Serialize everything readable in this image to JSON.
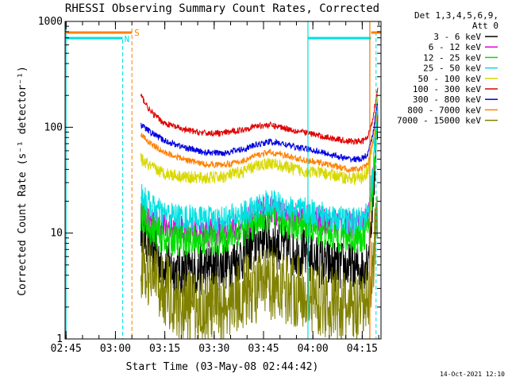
{
  "chart_data": {
    "type": "line",
    "title": "RHESSI Observing Summary Count Rates, Corrected",
    "xlabel": "Start Time (03-May-08 02:44:42)",
    "ylabel": "Corrected Count Rate (s⁻¹ detector⁻¹)",
    "x_unit": "minutes since 02:44:42",
    "xlim": [
      0,
      96
    ],
    "ylim": [
      1,
      1000
    ],
    "y_scale": "log",
    "x_ticks": [
      {
        "t": 0.3,
        "label": "02:45"
      },
      {
        "t": 15.3,
        "label": "03:00"
      },
      {
        "t": 30.3,
        "label": "03:15"
      },
      {
        "t": 45.3,
        "label": "03:30"
      },
      {
        "t": 60.3,
        "label": "03:45"
      },
      {
        "t": 75.3,
        "label": "04:00"
      },
      {
        "t": 90.3,
        "label": "04:15"
      }
    ],
    "y_ticks": [
      {
        "v": 1,
        "label": "1"
      },
      {
        "v": 10,
        "label": "10"
      },
      {
        "v": 100,
        "label": "100"
      },
      {
        "v": 1000,
        "label": "1000"
      }
    ],
    "legend": {
      "header": [
        "Det 1,3,4,5,6,9,",
        "Att 0"
      ],
      "placement": "right"
    },
    "data_start": 23,
    "data_end": 95,
    "series": [
      {
        "name": "3 - 6 keV",
        "color": "#000000",
        "points": [
          [
            23,
            12
          ],
          [
            26,
            7.5
          ],
          [
            30,
            5
          ],
          [
            35,
            4.3
          ],
          [
            40,
            4.4
          ],
          [
            46,
            4.8
          ],
          [
            52,
            5.5
          ],
          [
            56,
            7
          ],
          [
            60,
            9.5
          ],
          [
            64,
            8
          ],
          [
            68,
            7
          ],
          [
            72,
            6.5
          ],
          [
            76,
            5.5
          ],
          [
            80,
            5
          ],
          [
            84,
            4.8
          ],
          [
            88,
            4.6
          ],
          [
            90,
            4.6
          ],
          [
            92,
            6
          ],
          [
            93.5,
            20
          ],
          [
            94.5,
            70
          ],
          [
            95,
            130
          ]
        ],
        "noise": 0.25
      },
      {
        "name": "6 - 12 keV",
        "color": "#e000e0",
        "points": [
          [
            23,
            17
          ],
          [
            26,
            13
          ],
          [
            30,
            11.5
          ],
          [
            36,
            10.5
          ],
          [
            42,
            10
          ],
          [
            48,
            10.5
          ],
          [
            54,
            12
          ],
          [
            58,
            15
          ],
          [
            62,
            17
          ],
          [
            66,
            15.5
          ],
          [
            70,
            14
          ],
          [
            74,
            13.5
          ],
          [
            78,
            13
          ],
          [
            82,
            12.5
          ],
          [
            86,
            12
          ],
          [
            90,
            12
          ],
          [
            92,
            14
          ],
          [
            93.5,
            30
          ],
          [
            94.5,
            90
          ],
          [
            95,
            160
          ]
        ],
        "noise": 0.14
      },
      {
        "name": "12 - 25 keV",
        "color": "#00e000",
        "points": [
          [
            23,
            15
          ],
          [
            26,
            11
          ],
          [
            30,
            9
          ],
          [
            36,
            8.5
          ],
          [
            42,
            8.5
          ],
          [
            48,
            9
          ],
          [
            54,
            10.5
          ],
          [
            58,
            12.5
          ],
          [
            62,
            14.5
          ],
          [
            66,
            13
          ],
          [
            70,
            12
          ],
          [
            74,
            11.5
          ],
          [
            78,
            10.5
          ],
          [
            82,
            9.5
          ],
          [
            86,
            9
          ],
          [
            90,
            9
          ],
          [
            92,
            11
          ],
          [
            93.5,
            25
          ],
          [
            94.5,
            80
          ],
          [
            95,
            150
          ]
        ],
        "noise": 0.16
      },
      {
        "name": "25 - 50 keV",
        "color": "#00e0e0",
        "points": [
          [
            23,
            24
          ],
          [
            26,
            18
          ],
          [
            30,
            15
          ],
          [
            36,
            14
          ],
          [
            42,
            13.5
          ],
          [
            48,
            13.5
          ],
          [
            54,
            15
          ],
          [
            58,
            17
          ],
          [
            62,
            19.5
          ],
          [
            66,
            18
          ],
          [
            70,
            16.5
          ],
          [
            74,
            16
          ],
          [
            78,
            15
          ],
          [
            82,
            14
          ],
          [
            86,
            13
          ],
          [
            90,
            13
          ],
          [
            92,
            16
          ],
          [
            93.5,
            35
          ],
          [
            94.5,
            100
          ],
          [
            95,
            170
          ]
        ],
        "noise": 0.13
      },
      {
        "name": "50 - 100 keV",
        "color": "#d8d800",
        "points": [
          [
            23,
            50
          ],
          [
            26,
            42
          ],
          [
            30,
            37
          ],
          [
            36,
            34
          ],
          [
            42,
            33
          ],
          [
            48,
            34
          ],
          [
            54,
            38
          ],
          [
            58,
            43
          ],
          [
            62,
            46
          ],
          [
            66,
            43
          ],
          [
            70,
            40
          ],
          [
            74,
            38
          ],
          [
            78,
            37
          ],
          [
            82,
            35
          ],
          [
            86,
            33
          ],
          [
            90,
            33
          ],
          [
            92,
            38
          ],
          [
            93.5,
            70
          ],
          [
            94.5,
            150
          ],
          [
            95,
            200
          ]
        ],
        "noise": 0.06
      },
      {
        "name": "100 - 300 keV",
        "color": "#e00000",
        "points": [
          [
            23,
            200
          ],
          [
            26,
            140
          ],
          [
            30,
            110
          ],
          [
            36,
            95
          ],
          [
            42,
            88
          ],
          [
            48,
            88
          ],
          [
            54,
            95
          ],
          [
            58,
            103
          ],
          [
            62,
            105
          ],
          [
            66,
            100
          ],
          [
            70,
            93
          ],
          [
            74,
            88
          ],
          [
            78,
            82
          ],
          [
            82,
            78
          ],
          [
            86,
            74
          ],
          [
            90,
            73
          ],
          [
            92,
            80
          ],
          [
            93.5,
            120
          ],
          [
            94.5,
            190
          ],
          [
            95,
            230
          ]
        ],
        "noise": 0.03
      },
      {
        "name": "300 - 800 keV",
        "color": "#0000e0",
        "points": [
          [
            23,
            105
          ],
          [
            26,
            90
          ],
          [
            30,
            75
          ],
          [
            36,
            65
          ],
          [
            42,
            58
          ],
          [
            48,
            57
          ],
          [
            54,
            62
          ],
          [
            58,
            68
          ],
          [
            62,
            73
          ],
          [
            66,
            70
          ],
          [
            70,
            65
          ],
          [
            74,
            62
          ],
          [
            78,
            58
          ],
          [
            82,
            54
          ],
          [
            86,
            50
          ],
          [
            90,
            50
          ],
          [
            92,
            55
          ],
          [
            93.5,
            85
          ],
          [
            94.5,
            140
          ],
          [
            95,
            170
          ]
        ],
        "noise": 0.03
      },
      {
        "name": "800 - 7000 keV",
        "color": "#ff8000",
        "points": [
          [
            23,
            85
          ],
          [
            26,
            70
          ],
          [
            30,
            58
          ],
          [
            36,
            50
          ],
          [
            42,
            45
          ],
          [
            48,
            44
          ],
          [
            54,
            48
          ],
          [
            58,
            54
          ],
          [
            62,
            58
          ],
          [
            66,
            55
          ],
          [
            70,
            51
          ],
          [
            74,
            48
          ],
          [
            78,
            46
          ],
          [
            82,
            43
          ],
          [
            86,
            40
          ],
          [
            90,
            40
          ],
          [
            92,
            45
          ],
          [
            93.5,
            70
          ],
          [
            94.5,
            110
          ],
          [
            95,
            140
          ]
        ],
        "noise": 0.03
      },
      {
        "name": "7000 - 15000 keV",
        "color": "#808000",
        "points": [
          [
            23,
            5
          ],
          [
            27,
            4
          ],
          [
            30,
            3
          ],
          [
            33,
            2.5
          ],
          [
            36,
            2
          ],
          [
            40,
            2
          ],
          [
            46,
            2
          ],
          [
            50,
            2.2
          ],
          [
            53,
            2.7
          ],
          [
            56,
            3
          ],
          [
            60,
            3.2
          ],
          [
            64,
            3.4
          ],
          [
            68,
            3
          ],
          [
            72,
            2.8
          ],
          [
            76,
            2.5
          ],
          [
            80,
            2.2
          ],
          [
            84,
            2
          ],
          [
            88,
            1.8
          ],
          [
            90,
            1.8
          ],
          [
            92,
            2.5
          ],
          [
            93.5,
            5
          ],
          [
            94.5,
            12
          ],
          [
            95,
            20
          ]
        ],
        "noise": 0.35
      }
    ],
    "markers": {
      "N_label": "N",
      "S_label": "S",
      "cyan_color": "#00e0e0",
      "orange_color": "#ff8000"
    },
    "footer_date": "14-Oct-2021 12:10"
  }
}
